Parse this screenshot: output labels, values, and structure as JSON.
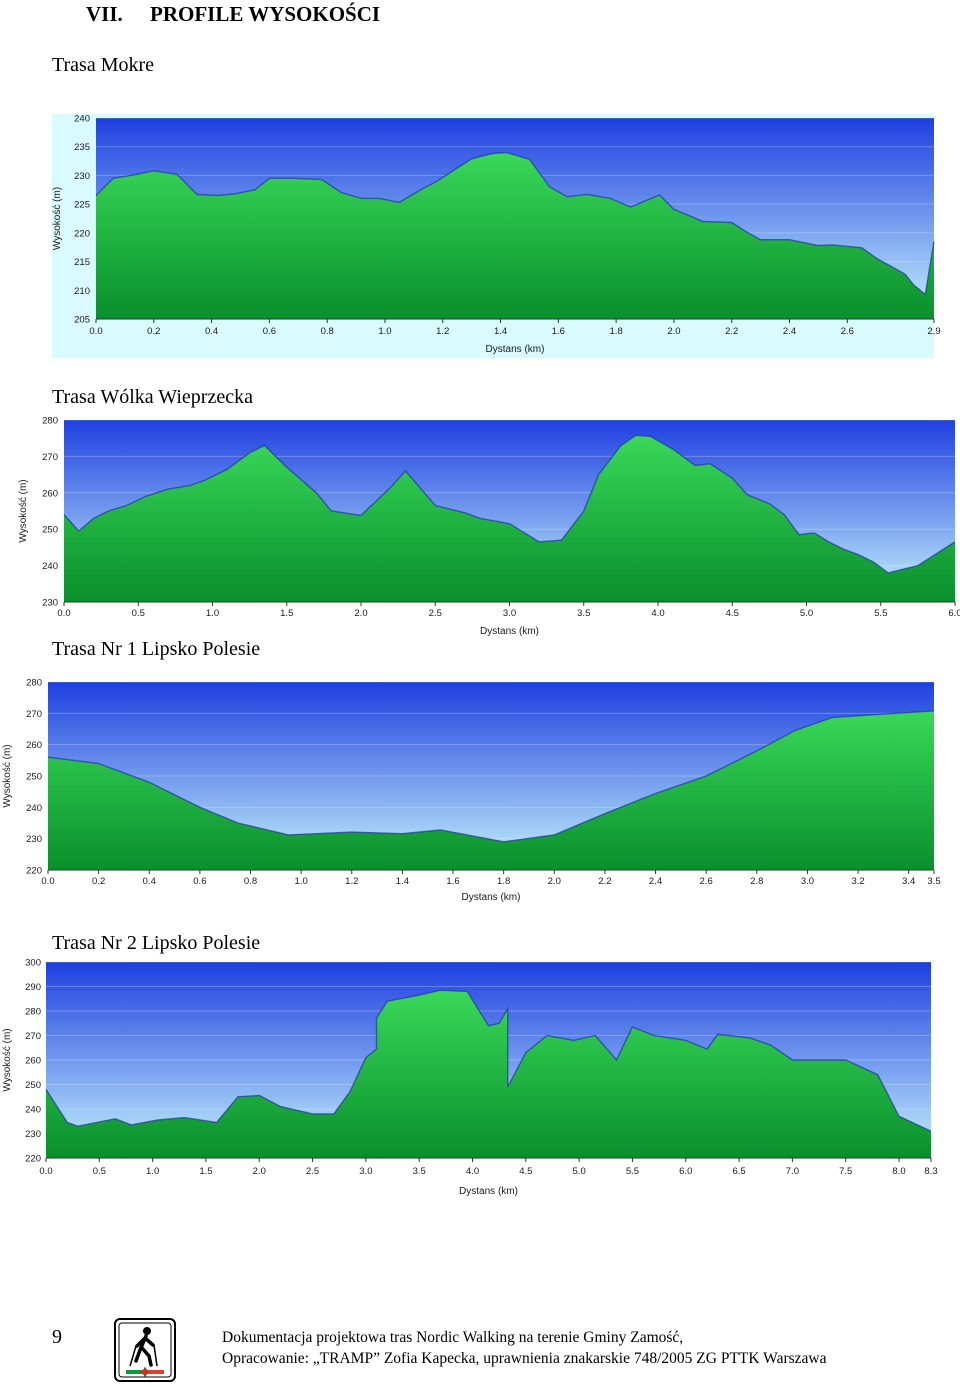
{
  "header": {
    "section_number": "VII.",
    "title": "PROFILE WYSOKOŚCI"
  },
  "footer": {
    "page_number": "9",
    "line1": "Dokumentacja projektowa tras Nordic Walking na terenie Gminy Zamość,",
    "line2": "Opracowanie: „TRAMP” Zofia Kapecka, uprawnienia znakarskie 748/2005 ZG PTTK Warszawa",
    "logo_icon": "nordic-walker-icon"
  },
  "colors": {
    "sky_top": "#1e3fe0",
    "sky_bottom": "#c6f4fb",
    "fill_light": "#39d85a",
    "fill_dark": "#0a8f2c",
    "outline": "#1a3d8a"
  },
  "chart_data": [
    {
      "type": "area",
      "title": "Trasa Mokre",
      "xlabel": "Dystans  (km)",
      "ylabel": "Wysokość (m)",
      "xlim": [
        0,
        2.9
      ],
      "ylim": [
        205,
        240
      ],
      "xticks": [
        "0.0",
        "0.2",
        "0.4",
        "0.6",
        "0.8",
        "1.0",
        "1.2",
        "1.4",
        "1.6",
        "1.8",
        "2.0",
        "2.2",
        "2.4",
        "2.6",
        "2.9"
      ],
      "xtick_values": [
        0,
        0.2,
        0.4,
        0.6,
        0.8,
        1.0,
        1.2,
        1.4,
        1.6,
        1.8,
        2.0,
        2.2,
        2.4,
        2.6,
        2.9
      ],
      "yticks": [
        205,
        210,
        215,
        220,
        225,
        230,
        235,
        240
      ],
      "x": [
        0,
        0.06,
        0.12,
        0.2,
        0.28,
        0.35,
        0.42,
        0.48,
        0.55,
        0.6,
        0.68,
        0.78,
        0.85,
        0.92,
        0.98,
        1.05,
        1.12,
        1.18,
        1.25,
        1.3,
        1.37,
        1.42,
        1.5,
        1.57,
        1.63,
        1.7,
        1.78,
        1.85,
        1.95,
        2.0,
        2.1,
        2.2,
        2.25,
        2.3,
        2.4,
        2.5,
        2.55,
        2.65,
        2.7,
        2.8,
        2.83,
        2.87,
        2.9
      ],
      "values": [
        226.5,
        229.5,
        230,
        230.8,
        230.2,
        226.7,
        226.5,
        226.8,
        227.5,
        229.5,
        229.5,
        229.3,
        227,
        226,
        226,
        225.3,
        227.4,
        229,
        231.3,
        232.9,
        233.8,
        234,
        232.8,
        228,
        226.3,
        226.7,
        226,
        224.5,
        226.6,
        224.1,
        222,
        221.8,
        220.2,
        218.8,
        218.8,
        217.8,
        217.9,
        217.4,
        215.6,
        212.8,
        210.9,
        209.3,
        218.5
      ]
    },
    {
      "type": "area",
      "title": "Trasa Wólka Wieprzecka",
      "xlabel": "Dystans  (km)",
      "ylabel": "Wysokość (m)",
      "xlim": [
        0,
        6.0
      ],
      "ylim": [
        230,
        280
      ],
      "xticks": [
        "0.0",
        "0.5",
        "1.0",
        "1.5",
        "2.0",
        "2.5",
        "3.0",
        "3.5",
        "4.0",
        "4.5",
        "5.0",
        "5.5",
        "6.0"
      ],
      "xtick_values": [
        0,
        0.5,
        1.0,
        1.5,
        2.0,
        2.5,
        3.0,
        3.5,
        4.0,
        4.5,
        5.0,
        5.5,
        6.0
      ],
      "yticks": [
        230,
        240,
        250,
        260,
        270,
        280
      ],
      "x": [
        0,
        0.1,
        0.2,
        0.3,
        0.42,
        0.55,
        0.7,
        0.85,
        0.95,
        1.1,
        1.25,
        1.35,
        1.5,
        1.7,
        1.8,
        2.0,
        2.2,
        2.3,
        2.5,
        2.6,
        2.7,
        2.8,
        3.0,
        3.1,
        3.2,
        3.35,
        3.5,
        3.6,
        3.75,
        3.85,
        3.95,
        4.1,
        4.25,
        4.35,
        4.5,
        4.6,
        4.75,
        4.85,
        4.95,
        5.05,
        5.15,
        5.25,
        5.35,
        5.45,
        5.55,
        5.75,
        6.0
      ],
      "values": [
        254,
        249.5,
        253,
        255,
        256.5,
        259,
        261,
        262,
        263.5,
        266.5,
        271,
        273,
        267,
        260,
        255,
        253.8,
        261.5,
        266,
        256.5,
        255.5,
        254.5,
        253,
        251.5,
        249,
        246.5,
        247,
        255,
        265,
        273,
        275.8,
        275.5,
        272,
        267.5,
        268,
        264,
        259.5,
        257,
        254,
        248.5,
        249,
        246.5,
        244.5,
        243,
        241,
        238,
        240,
        246.5
      ]
    },
    {
      "type": "area",
      "title": "Trasa Nr 1 Lipsko Polesie",
      "xlabel": "Dystans  (km)",
      "ylabel": "Wysokość (m)",
      "xlim": [
        0,
        3.5
      ],
      "ylim": [
        220,
        280
      ],
      "xticks": [
        "0.0",
        "0.2",
        "0.4",
        "0.6",
        "0.8",
        "1.0",
        "1.2",
        "1.4",
        "1.6",
        "1.8",
        "2.0",
        "2.2",
        "2.4",
        "2.6",
        "2.8",
        "3.0",
        "3.2",
        "3.4",
        "3.5"
      ],
      "xtick_values": [
        0,
        0.2,
        0.4,
        0.6,
        0.8,
        1.0,
        1.2,
        1.4,
        1.6,
        1.8,
        2.0,
        2.2,
        2.4,
        2.6,
        2.8,
        3.0,
        3.2,
        3.4,
        3.5
      ],
      "yticks": [
        220,
        230,
        240,
        250,
        260,
        270,
        280
      ],
      "x": [
        0,
        0.2,
        0.4,
        0.6,
        0.75,
        0.95,
        1.2,
        1.4,
        1.55,
        1.8,
        2.0,
        2.2,
        2.4,
        2.6,
        2.8,
        2.95,
        3.1,
        3.35,
        3.5
      ],
      "values": [
        256,
        254,
        248,
        240,
        235,
        231.2,
        232.1,
        231.6,
        232.8,
        229,
        231.2,
        238,
        244.4,
        250,
        258,
        264.5,
        268.7,
        270,
        270.8
      ]
    },
    {
      "type": "area",
      "title": "Trasa Nr 2 Lipsko Polesie",
      "xlabel": "Dystans  (km)",
      "ylabel": "Wysokość (m)",
      "xlim": [
        0,
        8.3
      ],
      "ylim": [
        220,
        300
      ],
      "xticks": [
        "0.0",
        "0.5",
        "1.0",
        "1.5",
        "2.0",
        "2.5",
        "3.0",
        "3.5",
        "4.0",
        "4.5",
        "5.0",
        "5.5",
        "6.0",
        "6.5",
        "7.0",
        "7.5",
        "8.0",
        "8.3"
      ],
      "xtick_values": [
        0,
        0.5,
        1.0,
        1.5,
        2.0,
        2.5,
        3.0,
        3.5,
        4.0,
        4.5,
        5.0,
        5.5,
        6.0,
        6.5,
        7.0,
        7.5,
        8.0,
        8.3
      ],
      "yticks": [
        220,
        230,
        240,
        250,
        260,
        270,
        280,
        290,
        300
      ],
      "x": [
        0,
        0.2,
        0.3,
        0.65,
        0.8,
        1.05,
        1.3,
        1.6,
        1.8,
        2.0,
        2.2,
        2.5,
        2.7,
        2.85,
        3.0,
        3.1,
        3.1,
        3.2,
        3.5,
        3.7,
        3.95,
        4.15,
        4.25,
        4.33,
        4.33,
        4.5,
        4.7,
        4.95,
        5.15,
        5.35,
        5.5,
        5.7,
        6.0,
        6.2,
        6.3,
        6.6,
        6.8,
        7.0,
        7.5,
        7.8,
        8.0,
        8.3
      ],
      "values": [
        248,
        234.5,
        233,
        236,
        233.5,
        235.5,
        236.5,
        234.5,
        245,
        245.5,
        241,
        238,
        238,
        247,
        261,
        264.5,
        277,
        284,
        286.5,
        288.5,
        288,
        274,
        275,
        281,
        249,
        263,
        270,
        268,
        270,
        260,
        273.5,
        270,
        268,
        264.5,
        270.5,
        269,
        266,
        260,
        260,
        254,
        237,
        231
      ]
    }
  ]
}
